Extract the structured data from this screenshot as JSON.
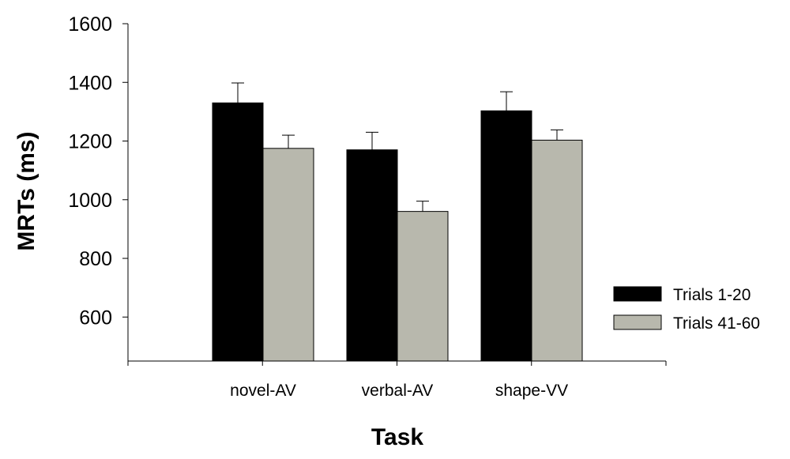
{
  "chart_data": {
    "type": "bar",
    "title": "",
    "xlabel": "Task",
    "ylabel": "MRTs (ms)",
    "ylim": [
      450,
      1600
    ],
    "yticks": [
      600,
      800,
      1000,
      1200,
      1400,
      1600
    ],
    "categories": [
      "novel-AV",
      "verbal-AV",
      "shape-VV"
    ],
    "series": [
      {
        "name": "Trials 1-20",
        "color": "#000000",
        "values": [
          1330,
          1170,
          1303
        ],
        "errors": [
          68,
          60,
          65
        ]
      },
      {
        "name": "Trials 41-60",
        "color": "#b8b8ad",
        "values": [
          1175,
          960,
          1203
        ],
        "errors": [
          45,
          35,
          35
        ]
      }
    ],
    "grid": false,
    "legend": "right"
  }
}
